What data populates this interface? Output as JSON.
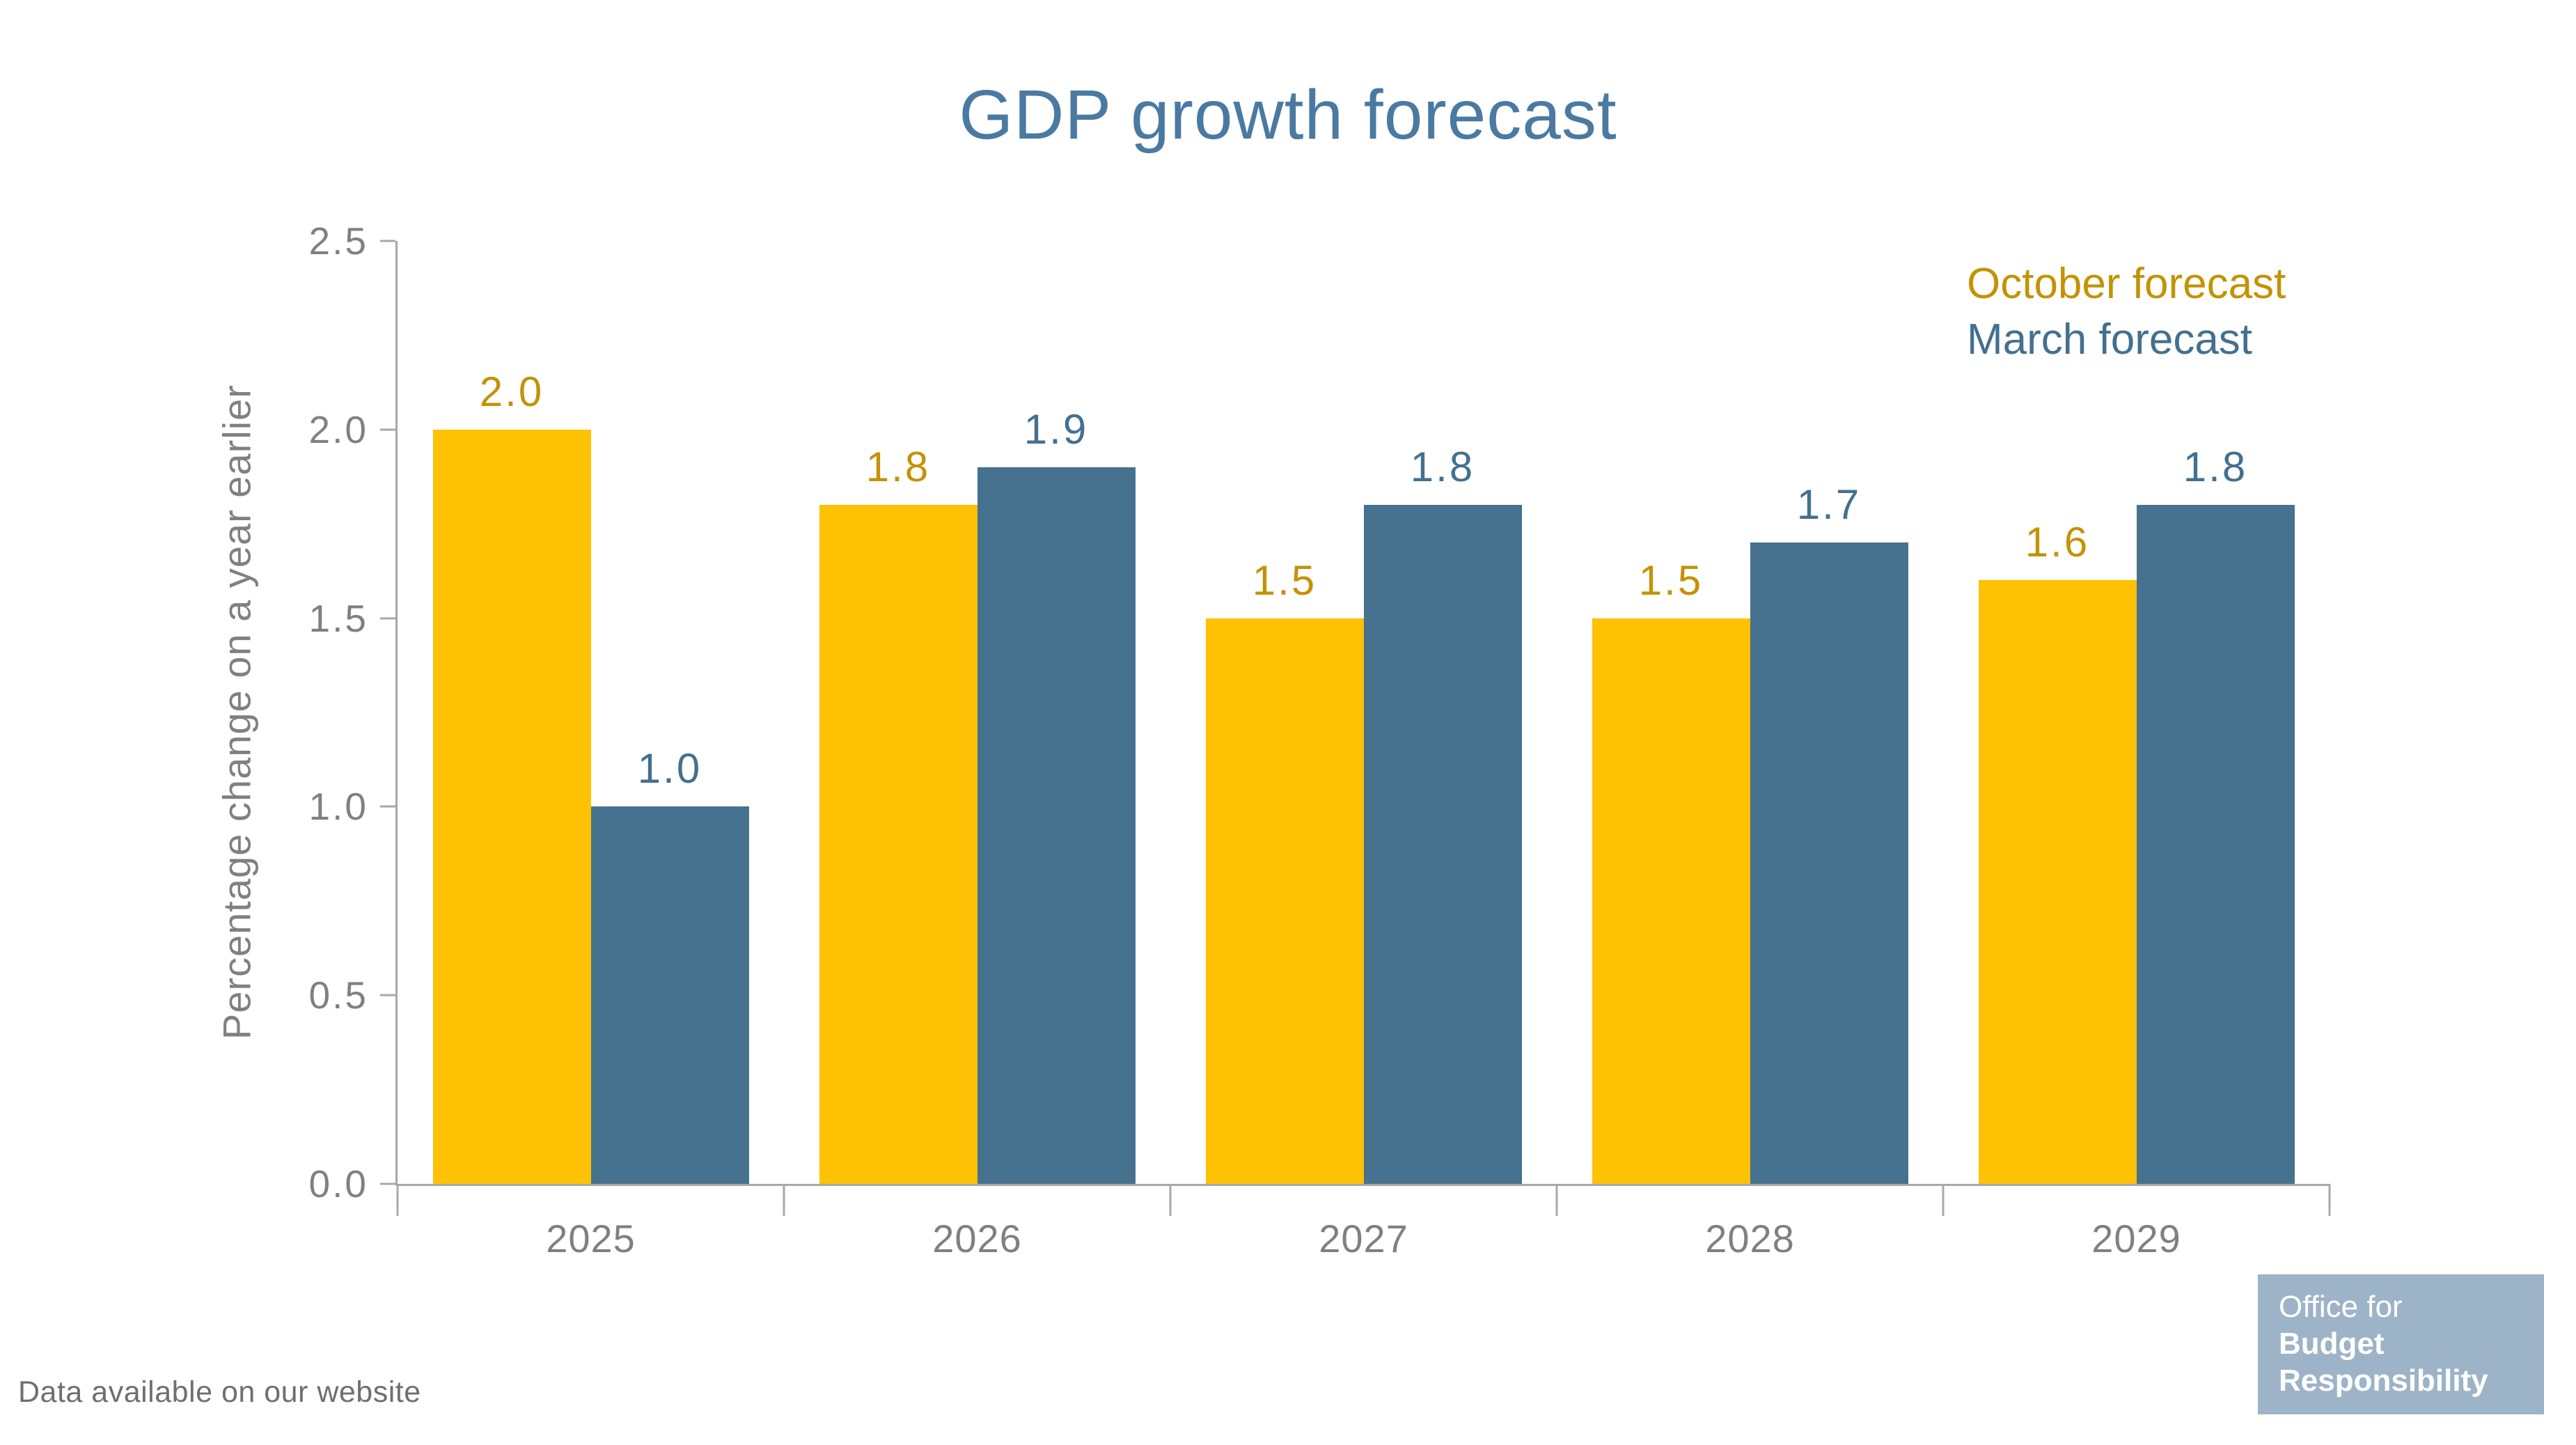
{
  "title": "GDP growth forecast",
  "y_axis_title": "Percentage change on a year earlier",
  "footer": {
    "note": "Data available on our website"
  },
  "logo": {
    "line1": "Office for",
    "line2": "Budget",
    "line3": "Responsibility",
    "background": "#9DB3C7",
    "text_color": "#FFFFFF"
  },
  "colors": {
    "title": "#4A7AA2",
    "axis_line": "#A8A8A8",
    "tick_text": "#808080",
    "footnote_text": "#6F6F6F"
  },
  "chart_data": {
    "type": "bar",
    "title": "GDP growth forecast",
    "categories": [
      "2025",
      "2026",
      "2027",
      "2028",
      "2029"
    ],
    "series": [
      {
        "name": "October forecast",
        "bar_color": "#FFC103",
        "label_color": "#C39305",
        "values": [
          2.0,
          1.8,
          1.5,
          1.5,
          1.6
        ]
      },
      {
        "name": "March forecast",
        "bar_color": "#46718F",
        "label_color": "#44708F",
        "values": [
          1.0,
          1.9,
          1.8,
          1.7,
          1.8
        ]
      }
    ],
    "ylabel": "Percentage change on a year earlier",
    "ylim": [
      0,
      2.5
    ],
    "yticks": [
      0.0,
      0.5,
      1.0,
      1.5,
      2.0,
      2.5
    ],
    "grid": false,
    "legend_position": "top-right",
    "value_label_decimals": 1
  }
}
